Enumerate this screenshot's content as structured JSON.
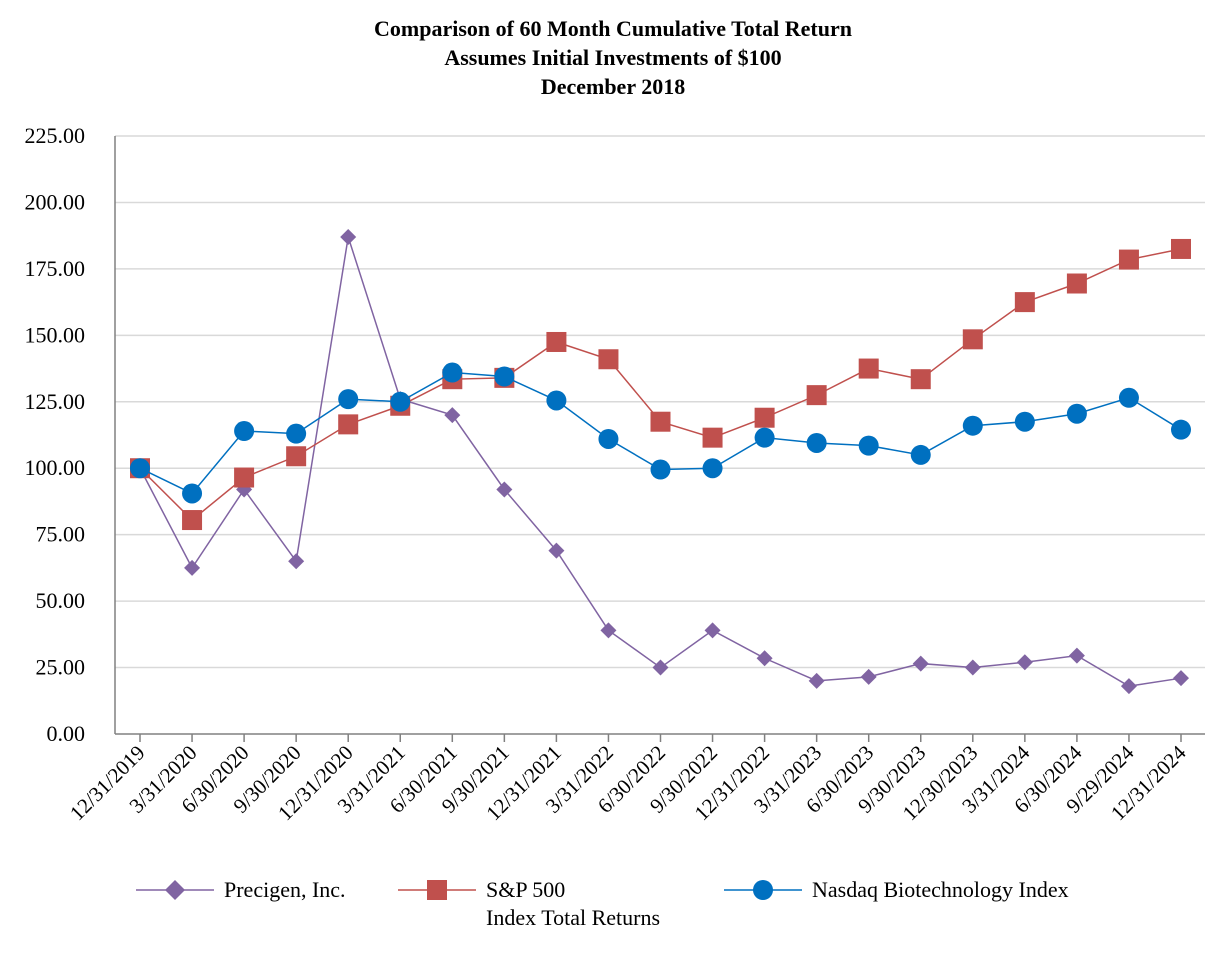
{
  "chart_data": {
    "type": "line",
    "title": [
      "Comparison of 60 Month Cumulative Total Return",
      "Assumes Initial Investments of $100",
      "December 2018"
    ],
    "xlabel": "",
    "ylabel": "",
    "ylim": [
      0,
      225
    ],
    "yticks": [
      "0.00",
      "25.00",
      "50.00",
      "75.00",
      "100.00",
      "125.00",
      "150.00",
      "175.00",
      "200.00",
      "225.00"
    ],
    "grid": true,
    "legend_position": "bottom",
    "categories": [
      "12/31/2019",
      "3/31/2020",
      "6/30/2020",
      "9/30/2020",
      "12/31/2020",
      "3/31/2021",
      "6/30/2021",
      "9/30/2021",
      "12/31/2021",
      "3/31/2022",
      "6/30/2022",
      "9/30/2022",
      "12/31/2022",
      "3/31/2023",
      "6/30/2023",
      "9/30/2023",
      "12/30/2023",
      "3/31/2024",
      "6/30/2024",
      "9/29/2024",
      "12/31/2024"
    ],
    "series": [
      {
        "name": "Precigen, Inc.",
        "color": "#8064a2",
        "marker": "diamond",
        "values": [
          100,
          62.5,
          92,
          65,
          187,
          126,
          120,
          92,
          69,
          39,
          25,
          39,
          28.5,
          20,
          21.5,
          26.5,
          25,
          27,
          29.5,
          18,
          21
        ]
      },
      {
        "name": "S&P 500 Index Total Returns",
        "color": "#c0504d",
        "marker": "square",
        "values": [
          100,
          80.5,
          96.5,
          104.5,
          116.5,
          123.5,
          133.5,
          134,
          147.5,
          141,
          117.5,
          111.5,
          119,
          127.5,
          137.5,
          133.5,
          148.5,
          162.5,
          169.5,
          178.5,
          182.5
        ]
      },
      {
        "name": "Nasdaq Biotechnology Index",
        "color": "#0070c0",
        "marker": "circle",
        "values": [
          100,
          90.5,
          114,
          113,
          126,
          125,
          136,
          134.5,
          125.5,
          111,
          99.5,
          100,
          111.5,
          109.5,
          108.5,
          105,
          116,
          117.5,
          120.5,
          126.5,
          114.5
        ]
      }
    ]
  },
  "legend": [
    {
      "label": "Precigen, Inc.",
      "label2": ""
    },
    {
      "label": "S&P 500",
      "label2": "Index Total Returns"
    },
    {
      "label": "Nasdaq Biotechnology Index",
      "label2": ""
    }
  ]
}
